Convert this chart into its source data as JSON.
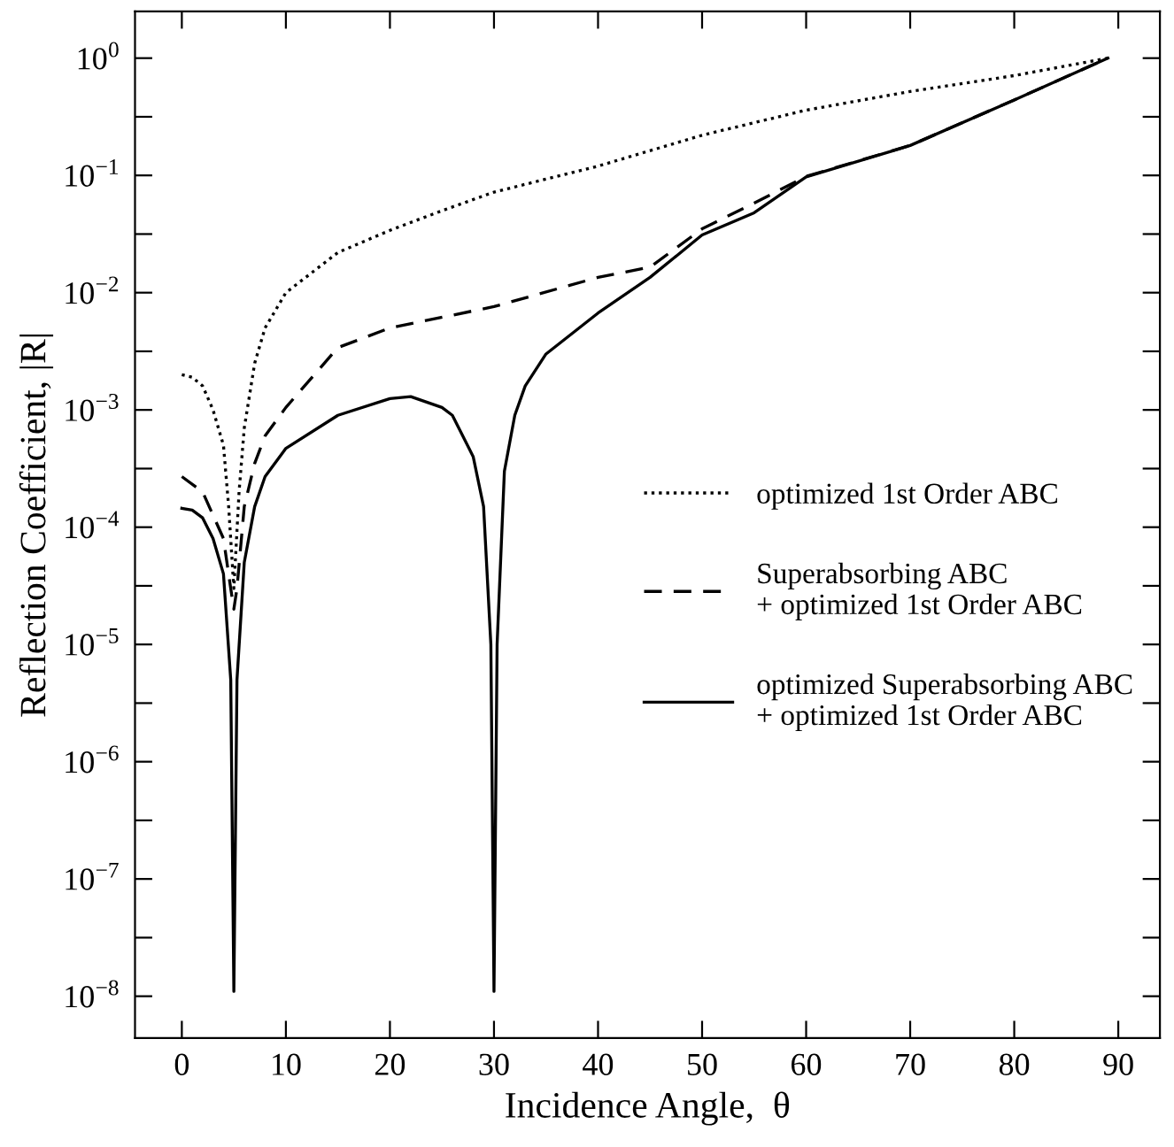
{
  "chart_data": {
    "type": "line",
    "xlabel": "Incidence Angle,  θ",
    "ylabel": "Reflection Coefficient, |R|",
    "log": "y",
    "legend": "right",
    "grid": false,
    "xlim": [
      -4.5,
      94
    ],
    "xticks": [
      0,
      10,
      20,
      30,
      40,
      50,
      60,
      70,
      80,
      90
    ],
    "ylim": [
      4.4e-09,
      2.5
    ],
    "yticks": [
      {
        "value": 1e-08,
        "label": "10$^{−8}$"
      },
      {
        "value": 3.16e-08,
        "label": null
      },
      {
        "value": 1e-07,
        "label": "10$^{−7}$"
      },
      {
        "value": 3.16e-07,
        "label": null
      },
      {
        "value": 1e-06,
        "label": "10$^{−6}$"
      },
      {
        "value": 3.16e-06,
        "label": null
      },
      {
        "value": 1e-05,
        "label": "10$^{−5}$"
      },
      {
        "value": 3.16e-05,
        "label": null
      },
      {
        "value": 0.0001,
        "label": "10$^{−4}$"
      },
      {
        "value": 0.000316,
        "label": null
      },
      {
        "value": 0.001,
        "label": "10$^{−3}$"
      },
      {
        "value": 0.00316,
        "label": null
      },
      {
        "value": 0.01,
        "label": "10$^{−2}$"
      },
      {
        "value": 0.0316,
        "label": null
      },
      {
        "value": 0.1,
        "label": "10$^{−1}$"
      },
      {
        "value": 0.316,
        "label": null
      },
      {
        "value": 1,
        "label": "10$^{0}$"
      }
    ],
    "series": [
      {
        "name": "optimized 1st Order ABC",
        "color": "#000000",
        "line_style": "dotted",
        "x": [
          0,
          1,
          2,
          3,
          4,
          4.5,
          5,
          5.5,
          6,
          7,
          8,
          10,
          15,
          20,
          25,
          30,
          40,
          50,
          60,
          70,
          80,
          89
        ],
        "values": [
          0.002,
          0.0019,
          0.0016,
          0.001,
          0.0005,
          0.00015,
          3e-05,
          0.0002,
          0.0007,
          0.0025,
          0.005,
          0.01,
          0.022,
          0.034,
          0.05,
          0.072,
          0.12,
          0.22,
          0.36,
          0.52,
          0.71,
          1.0
        ]
      },
      {
        "name": "Superabsorbing ABC\n+ optimized 1st Order ABC",
        "color": "#000000",
        "line_style": "dashed",
        "x": [
          0,
          2,
          4,
          4.7,
          5,
          5.3,
          6,
          7,
          8,
          10,
          15,
          20,
          30,
          40,
          45,
          50,
          55,
          60,
          70,
          80,
          89
        ],
        "values": [
          0.00027,
          0.0002,
          8e-05,
          3e-05,
          2e-05,
          3e-05,
          0.00015,
          0.00035,
          0.0006,
          0.00105,
          0.0034,
          0.005,
          0.0076,
          0.0135,
          0.0165,
          0.035,
          0.058,
          0.098,
          0.18,
          0.44,
          1.0
        ]
      },
      {
        "name": "optimized Superabsorbing ABC\n+ optimized 1st Order ABC",
        "color": "#000000",
        "line_style": "solid",
        "x": [
          0,
          1,
          2,
          3,
          4,
          4.7,
          5,
          5.3,
          6,
          7,
          8,
          10,
          15,
          20,
          22,
          25,
          26,
          28,
          29,
          29.7,
          30,
          30.3,
          31,
          32,
          33,
          35,
          40,
          45,
          50,
          55,
          60,
          70,
          80,
          89
        ],
        "values": [
          0.000145,
          0.00014,
          0.00012,
          8e-05,
          4e-05,
          5e-06,
          1.1e-08,
          5e-06,
          5e-05,
          0.00015,
          0.00027,
          0.00047,
          0.0009,
          0.00125,
          0.0013,
          0.00105,
          0.0009,
          0.0004,
          0.00015,
          1e-05,
          1.1e-08,
          1e-05,
          0.0003,
          0.0009,
          0.0016,
          0.003,
          0.0067,
          0.0135,
          0.031,
          0.048,
          0.097,
          0.18,
          0.44,
          1.0
        ]
      }
    ]
  }
}
